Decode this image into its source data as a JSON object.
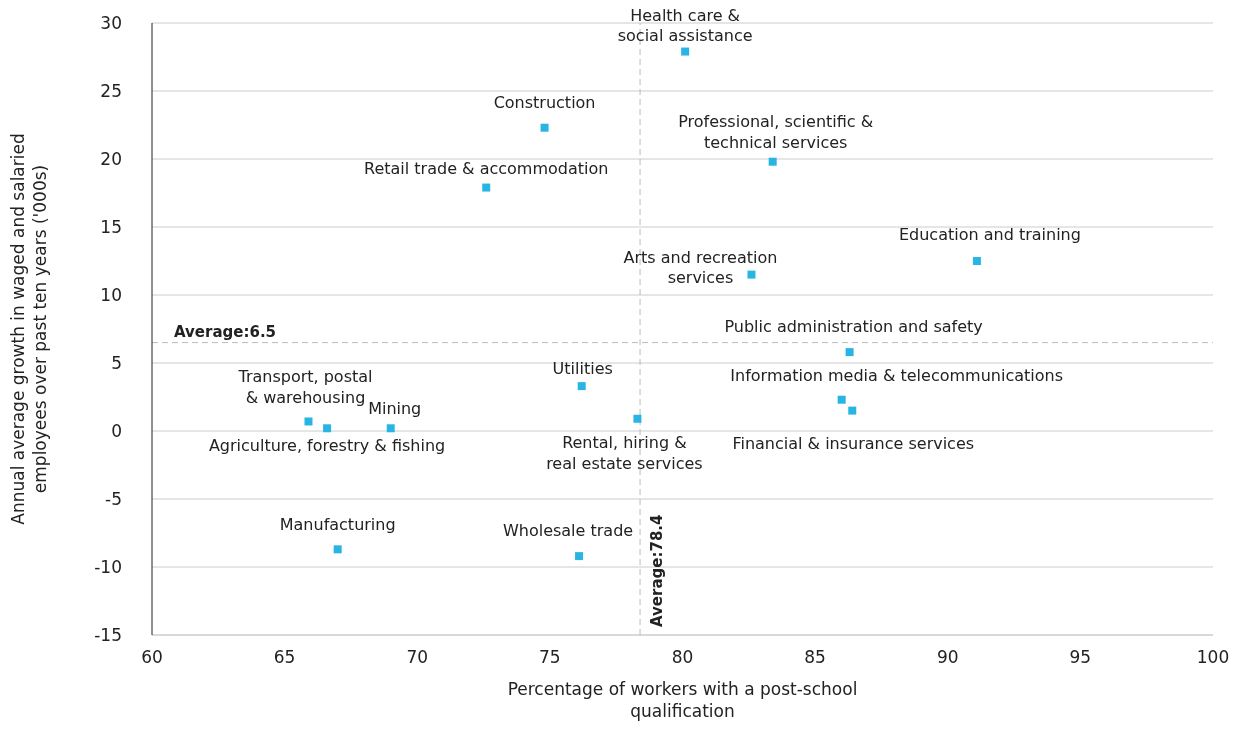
{
  "chart_data": {
    "type": "scatter",
    "xlabel": "Percentage of workers with a post-school\nqualification",
    "ylabel": "Annual average growth in waged and salaried\nemployees over past ten years ('000s)",
    "x": [
      80.1,
      74.8,
      83.4,
      72.6,
      91.1,
      82.6,
      86.3,
      86.0,
      86.4,
      76.2,
      78.3,
      65.9,
      66.6,
      69.0,
      67.0,
      76.1
    ],
    "series": [
      {
        "color": "#29b5e3",
        "values": [
          27.9,
          22.3,
          19.8,
          17.9,
          12.5,
          11.5,
          5.8,
          2.3,
          1.5,
          3.3,
          0.9,
          0.7,
          0.2,
          0.2,
          -8.7,
          -9.2
        ]
      }
    ],
    "annotations": [
      {
        "text": "Health care &\nsocial assistance",
        "x": 80.1,
        "y": 27.9
      },
      {
        "text": "Construction",
        "x": 74.8,
        "y": 22.3
      },
      {
        "text": "Professional, scientific &\ntechnical services",
        "x": 83.4,
        "y": 19.8
      },
      {
        "text": "Retail trade & accommodation",
        "x": 72.6,
        "y": 17.9
      },
      {
        "text": "Education and training",
        "x": 91.1,
        "y": 12.5
      },
      {
        "text": "Arts and recreation\nservices",
        "x": 82.6,
        "y": 11.5
      },
      {
        "text": "Public administration and safety",
        "x": 86.3,
        "y": 5.8
      },
      {
        "text": "Information media & telecommunications",
        "x": 86.0,
        "y": 2.3
      },
      {
        "text": "Financial & insurance services",
        "x": 86.4,
        "y": 1.5
      },
      {
        "text": "Utilities",
        "x": 76.2,
        "y": 3.3
      },
      {
        "text": "Rental, hiring &\nreal estate services",
        "x": 78.3,
        "y": 0.9
      },
      {
        "text": "Transport, postal\n& warehousing",
        "x": 65.9,
        "y": 0.7
      },
      {
        "text": "Agriculture, forestry & fishing",
        "x": 66.6,
        "y": 0.2
      },
      {
        "text": "Mining",
        "x": 69.0,
        "y": 0.2
      },
      {
        "text": "Manufacturing",
        "x": 67.0,
        "y": -8.7
      },
      {
        "text": "Wholesale trade",
        "x": 76.1,
        "y": -9.2
      }
    ],
    "ref_lines": [
      {
        "axis": "x",
        "value": 78.4,
        "label": "Average:78.4",
        "color": "#bbbbbb",
        "line_style": "dashed"
      },
      {
        "axis": "y",
        "value": 6.5,
        "label": "Average:6.5",
        "color": "#bbbbbb",
        "line_style": "dashed"
      }
    ],
    "xlim": [
      60,
      100
    ],
    "xticks": [
      60,
      65,
      70,
      75,
      80,
      85,
      90,
      95,
      100
    ],
    "ylim": [
      -15,
      30
    ],
    "yticks": [
      -15,
      -10,
      -5,
      0,
      5,
      10,
      15,
      20,
      25,
      30
    ],
    "marker": "square",
    "grid": "y"
  }
}
